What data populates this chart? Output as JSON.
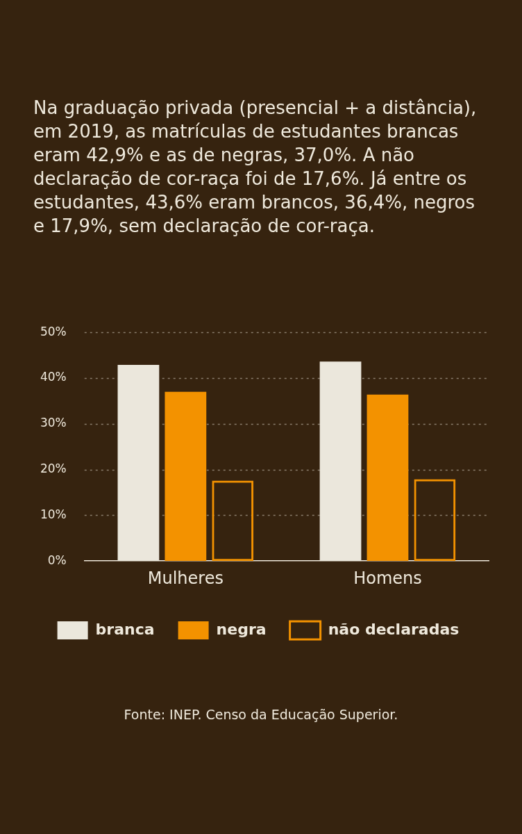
{
  "chart_data": {
    "type": "bar",
    "title": "Na graduação privada (presencial + a distância), em 2019, as matrículas de estudantes brancas eram 42,9% e as de negras, 37,0%. A não declaração de cor-raça foi de 17,6%. Já entre os estudantes, 43,6% eram brancos, 36,4%, negros e 17,9%, sem declaração de cor-raça.",
    "categories": [
      "Mulheres",
      "Homens"
    ],
    "series": [
      {
        "name": "branca",
        "color": "#ebe7dc",
        "values": [
          42.9,
          43.6
        ]
      },
      {
        "name": "negra",
        "color": "#f39200",
        "values": [
          37.0,
          36.4
        ]
      },
      {
        "name": "não declaradas",
        "color": "#f39200",
        "values": [
          17.6,
          17.9
        ]
      }
    ],
    "ylim": [
      0,
      50
    ],
    "yticks": [
      {
        "value": 0,
        "label": "0%"
      },
      {
        "value": 10,
        "label": "10%"
      },
      {
        "value": 20,
        "label": "20%"
      },
      {
        "value": 30,
        "label": "30%"
      },
      {
        "value": 40,
        "label": "40%"
      },
      {
        "value": 50,
        "label": "50%"
      }
    ],
    "grid": "y",
    "legend": "bottom",
    "annotations": [
      "Fonte: INEP. Censo da Educação Superior."
    ]
  }
}
